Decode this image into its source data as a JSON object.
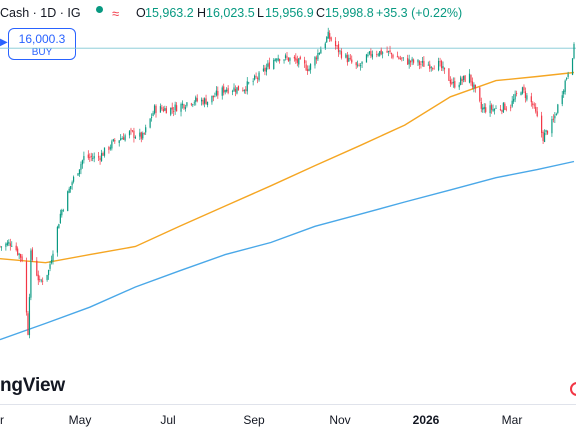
{
  "header": {
    "symbol_text": "Cash · 1D · IG",
    "o_key": "O",
    "o_val": "15,963.2",
    "h_key": "H",
    "h_val": "16,023.5",
    "l_key": "L",
    "l_val": "15,956.9",
    "c_key": "C",
    "c_val": "15,998.8",
    "change": "+35.3 (+0.22%)",
    "wave_icon": "≈"
  },
  "buy": {
    "price": "16,000.3",
    "label": "BUY"
  },
  "logo_text": "ngView",
  "icons": [
    "status-dot-icon",
    "wave-icon",
    "left-arrow-icon",
    "red-circle-marker-icon"
  ],
  "colors": {
    "up": "#089981",
    "down": "#f23645",
    "ma_short": "#f5a623",
    "ma_long": "#4aa8e8",
    "accent": "#2962ff"
  },
  "chart_data": {
    "type": "candlestick",
    "x_axis": {
      "ticks": [
        {
          "label": "r",
          "bold": false
        },
        {
          "label": "May",
          "bold": false
        },
        {
          "label": "Jul",
          "bold": false
        },
        {
          "label": "Sep",
          "bold": false
        },
        {
          "label": "Nov",
          "bold": false
        },
        {
          "label": "2026",
          "bold": true
        },
        {
          "label": "Mar",
          "bold": false
        }
      ]
    },
    "price_range": [
      12000,
      16200
    ],
    "horizontal_line": 16000.3,
    "close_path": [
      [
        "2025-03-20",
        13550
      ],
      [
        "2025-03-28",
        13600
      ],
      [
        "2025-04-04",
        13400
      ],
      [
        "2025-04-08",
        12500
      ],
      [
        "2025-04-10",
        13450
      ],
      [
        "2025-04-16",
        13100
      ],
      [
        "2025-04-22",
        13250
      ],
      [
        "2025-04-30",
        13950
      ],
      [
        "2025-05-08",
        14350
      ],
      [
        "2025-05-16",
        14650
      ],
      [
        "2025-05-26",
        14650
      ],
      [
        "2025-06-06",
        14850
      ],
      [
        "2025-06-16",
        14950
      ],
      [
        "2025-06-25",
        14900
      ],
      [
        "2025-07-03",
        15250
      ],
      [
        "2025-07-15",
        15250
      ],
      [
        "2025-07-28",
        15350
      ],
      [
        "2025-08-08",
        15350
      ],
      [
        "2025-08-20",
        15500
      ],
      [
        "2025-09-01",
        15500
      ],
      [
        "2025-09-12",
        15650
      ],
      [
        "2025-09-24",
        15900
      ],
      [
        "2025-10-06",
        15850
      ],
      [
        "2025-10-16",
        15750
      ],
      [
        "2025-10-29",
        16150
      ],
      [
        "2025-11-06",
        15950
      ],
      [
        "2025-11-18",
        15750
      ],
      [
        "2025-11-28",
        15950
      ],
      [
        "2025-12-08",
        15950
      ],
      [
        "2025-12-19",
        15850
      ],
      [
        "2026-01-02",
        15800
      ],
      [
        "2026-01-12",
        15800
      ],
      [
        "2026-01-22",
        15550
      ],
      [
        "2026-02-02",
        15650
      ],
      [
        "2026-02-10",
        15250
      ],
      [
        "2026-02-20",
        15250
      ],
      [
        "2026-03-02",
        15300
      ],
      [
        "2026-03-09",
        15500
      ],
      [
        "2026-03-17",
        15300
      ],
      [
        "2026-03-24",
        14900
      ],
      [
        "2026-03-31",
        15100
      ],
      [
        "2026-04-09",
        15650
      ],
      [
        "2026-04-14",
        15998.8
      ]
    ],
    "moving_averages": [
      {
        "color": "#f5a623",
        "points": [
          [
            "2025-03-20",
            13400
          ],
          [
            "2025-04-20",
            13350
          ],
          [
            "2025-05-20",
            13450
          ],
          [
            "2025-06-20",
            13550
          ],
          [
            "2025-07-20",
            13800
          ],
          [
            "2025-08-20",
            14050
          ],
          [
            "2025-09-20",
            14300
          ],
          [
            "2025-10-20",
            14550
          ],
          [
            "2025-11-20",
            14800
          ],
          [
            "2025-12-20",
            15050
          ],
          [
            "2026-01-20",
            15400
          ],
          [
            "2026-02-20",
            15600
          ],
          [
            "2026-03-20",
            15650
          ],
          [
            "2026-04-14",
            15700
          ]
        ]
      },
      {
        "color": "#4aa8e8",
        "points": [
          [
            "2025-03-20",
            12400
          ],
          [
            "2025-04-20",
            12600
          ],
          [
            "2025-05-20",
            12800
          ],
          [
            "2025-06-20",
            13050
          ],
          [
            "2025-07-20",
            13250
          ],
          [
            "2025-08-20",
            13450
          ],
          [
            "2025-09-20",
            13600
          ],
          [
            "2025-10-20",
            13800
          ],
          [
            "2025-11-20",
            13950
          ],
          [
            "2025-12-20",
            14100
          ],
          [
            "2026-01-20",
            14250
          ],
          [
            "2026-02-20",
            14400
          ],
          [
            "2026-03-20",
            14500
          ],
          [
            "2026-04-14",
            14600
          ]
        ]
      }
    ]
  }
}
